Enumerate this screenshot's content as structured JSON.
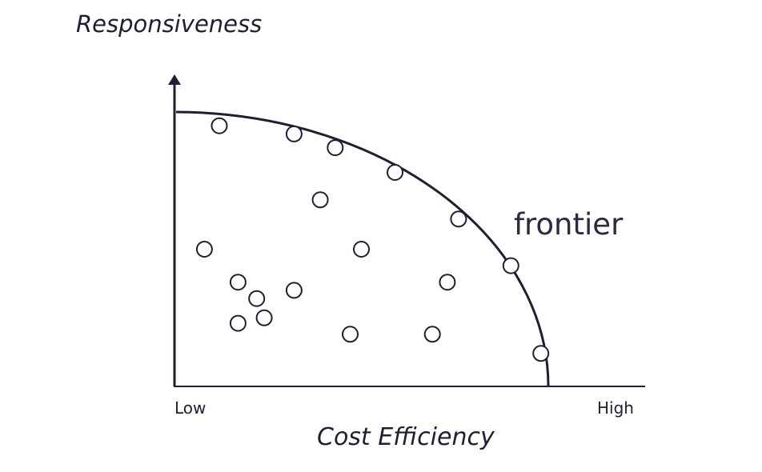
{
  "chart": {
    "y_title": "Responsiveness",
    "x_title": "Cost Efficiency",
    "x_tick_low": "Low",
    "x_tick_high": "High",
    "frontier_label": "frontier"
  },
  "colors": {
    "ink": "#1f1f33",
    "background": "#ffffff"
  },
  "chart_data": {
    "type": "scatter",
    "xlabel": "Cost Efficiency",
    "ylabel": "Responsiveness",
    "x_ticks": [
      "Low",
      "High"
    ],
    "annotation": "frontier",
    "xlim": [
      0,
      1
    ],
    "ylim": [
      0,
      1
    ],
    "frontier_curve": "quarter-ellipse bounding the points",
    "points": [
      {
        "x": 0.12,
        "y": 0.95
      },
      {
        "x": 0.32,
        "y": 0.92
      },
      {
        "x": 0.43,
        "y": 0.87
      },
      {
        "x": 0.59,
        "y": 0.78
      },
      {
        "x": 0.39,
        "y": 0.68
      },
      {
        "x": 0.76,
        "y": 0.61
      },
      {
        "x": 0.08,
        "y": 0.5
      },
      {
        "x": 0.5,
        "y": 0.5
      },
      {
        "x": 0.9,
        "y": 0.44
      },
      {
        "x": 0.17,
        "y": 0.38
      },
      {
        "x": 0.73,
        "y": 0.38
      },
      {
        "x": 0.32,
        "y": 0.35
      },
      {
        "x": 0.22,
        "y": 0.32
      },
      {
        "x": 0.24,
        "y": 0.25
      },
      {
        "x": 0.17,
        "y": 0.23
      },
      {
        "x": 0.47,
        "y": 0.19
      },
      {
        "x": 0.69,
        "y": 0.19
      },
      {
        "x": 0.98,
        "y": 0.12
      }
    ]
  }
}
